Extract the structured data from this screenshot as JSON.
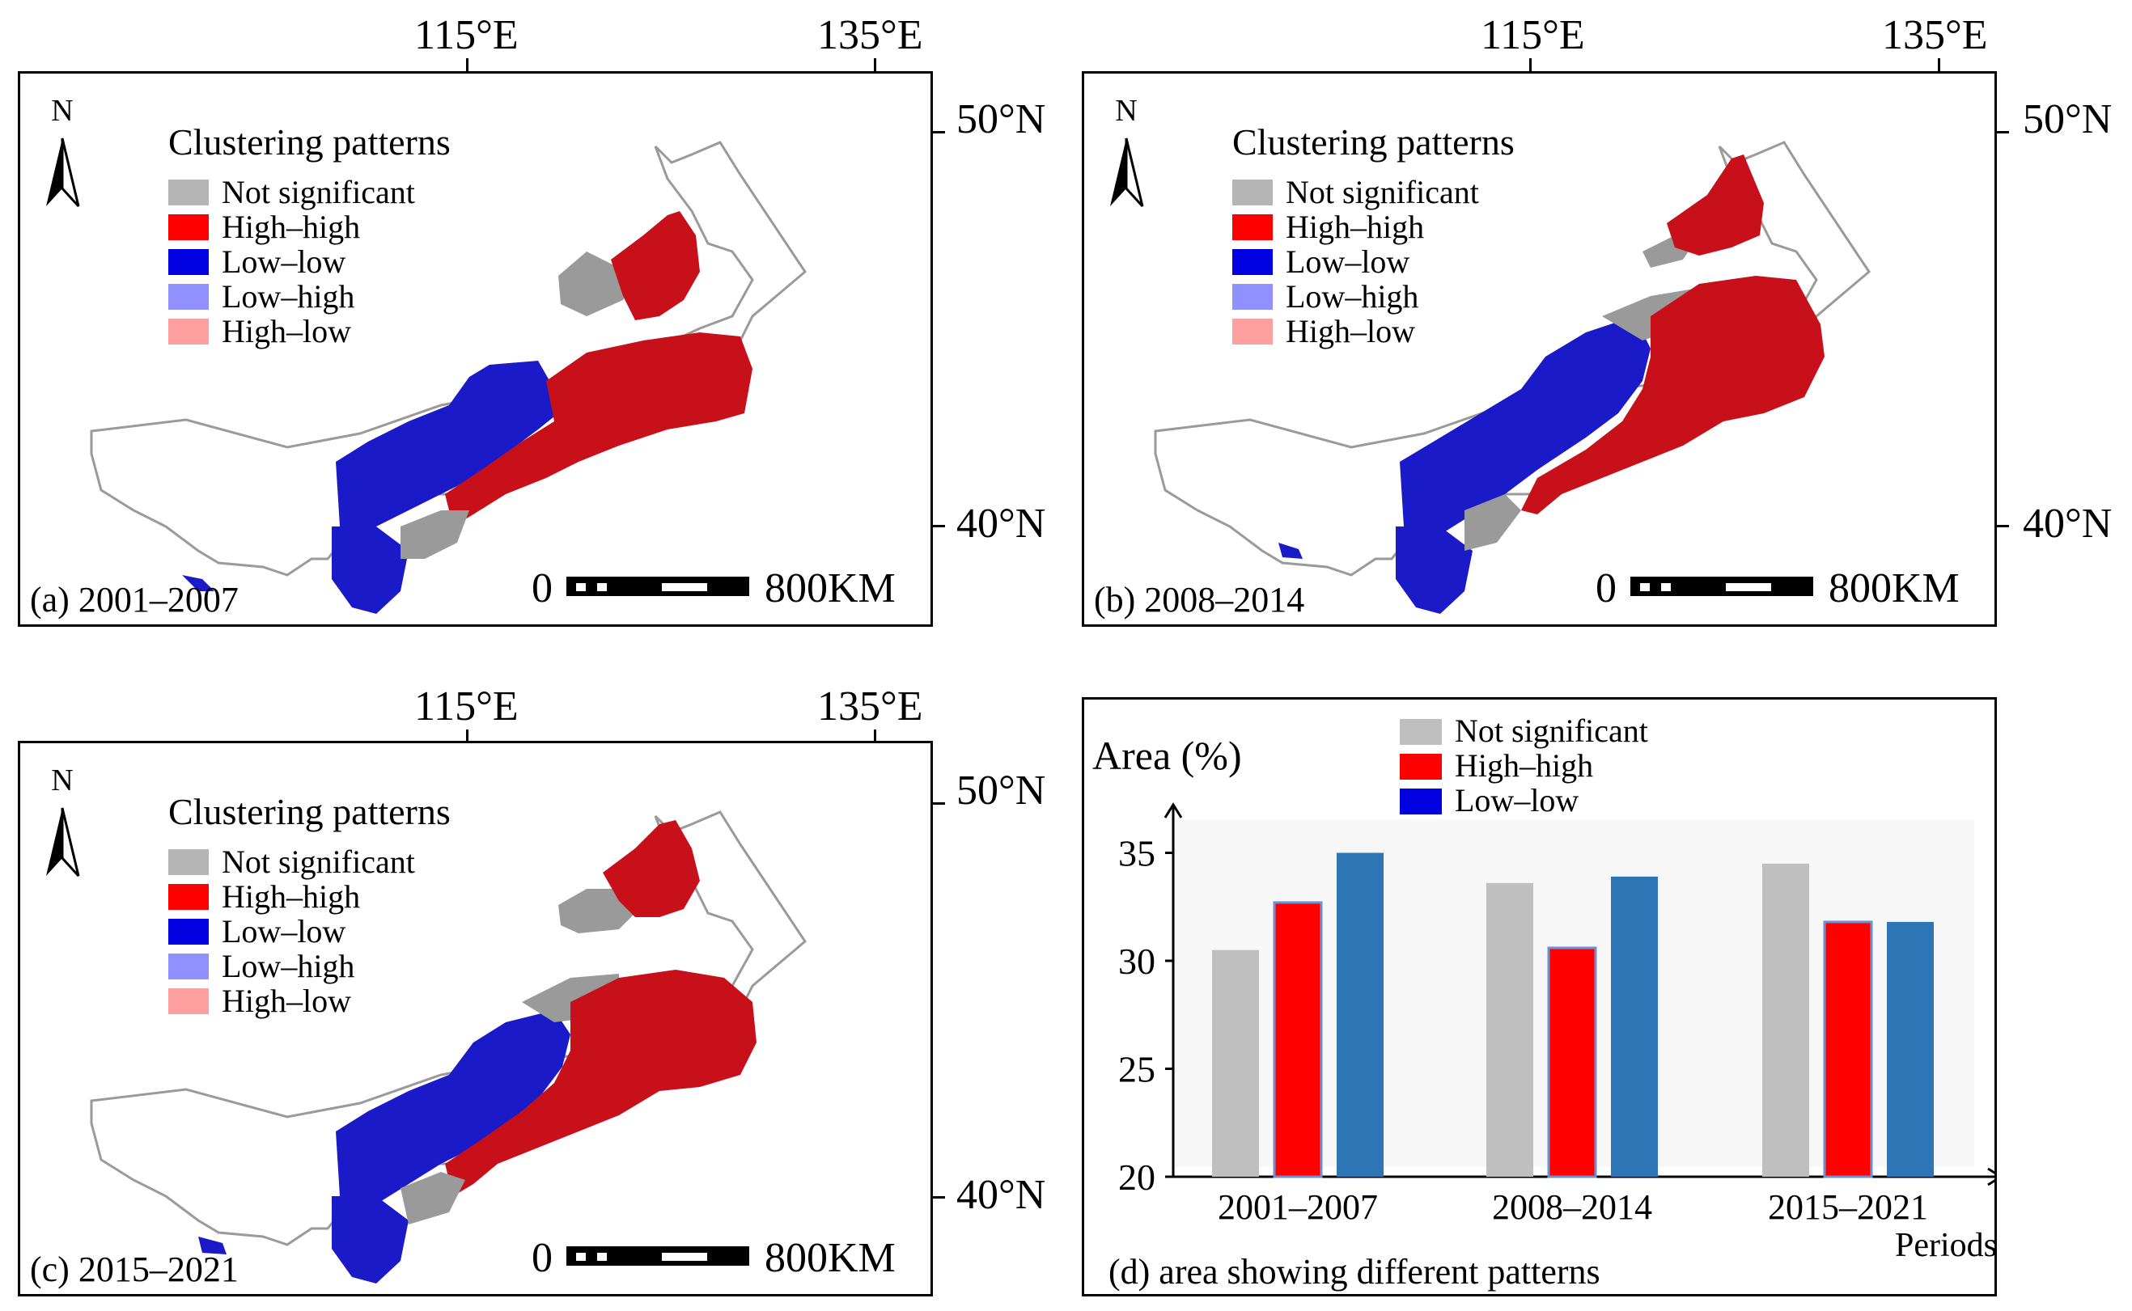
{
  "coords": {
    "lon1": "115°E",
    "lon2": "135°E",
    "lat1": "50°N",
    "lat2": "40°N"
  },
  "north_label": "N",
  "legend": {
    "title": "Clustering patterns",
    "items": [
      {
        "label": "Not significant",
        "color": "#b4b4b4"
      },
      {
        "label": "High–high",
        "color": "#ff0000"
      },
      {
        "label": "Low–low",
        "color": "#0000e0"
      },
      {
        "label": "Low–high",
        "color": "#9090ff"
      },
      {
        "label": "High–low",
        "color": "#ffa0a0"
      }
    ]
  },
  "scale": {
    "zero": "0",
    "distance": "800KM"
  },
  "panels": {
    "a": {
      "label": "(a) 2001–2007"
    },
    "b": {
      "label": "(b) 2008–2014"
    },
    "c": {
      "label": "(c) 2015–2021"
    }
  },
  "chart_data": {
    "type": "bar",
    "title": "(d) area showing different patterns",
    "ylabel": "Area (%)",
    "xlabel": "Periods",
    "categories": [
      "2001–2007",
      "2008–2014",
      "2015–2021"
    ],
    "series": [
      {
        "name": "Not significant",
        "values": [
          30.5,
          33.6,
          34.5
        ],
        "color": "#bfbfbf"
      },
      {
        "name": "High–high",
        "values": [
          32.7,
          30.6,
          31.8
        ],
        "color": "#ff0000"
      },
      {
        "name": "Low–low",
        "values": [
          35.0,
          33.9,
          31.8
        ],
        "color": "#2e75b6"
      }
    ],
    "legend": [
      {
        "label": "Not significant",
        "color": "#bfbfbf"
      },
      {
        "label": "High–high",
        "color": "#ff0000"
      },
      {
        "label": "Low–low",
        "color": "#0000e0"
      }
    ],
    "ylim": [
      20,
      36
    ],
    "yticks": [
      20,
      25,
      30,
      35
    ]
  }
}
